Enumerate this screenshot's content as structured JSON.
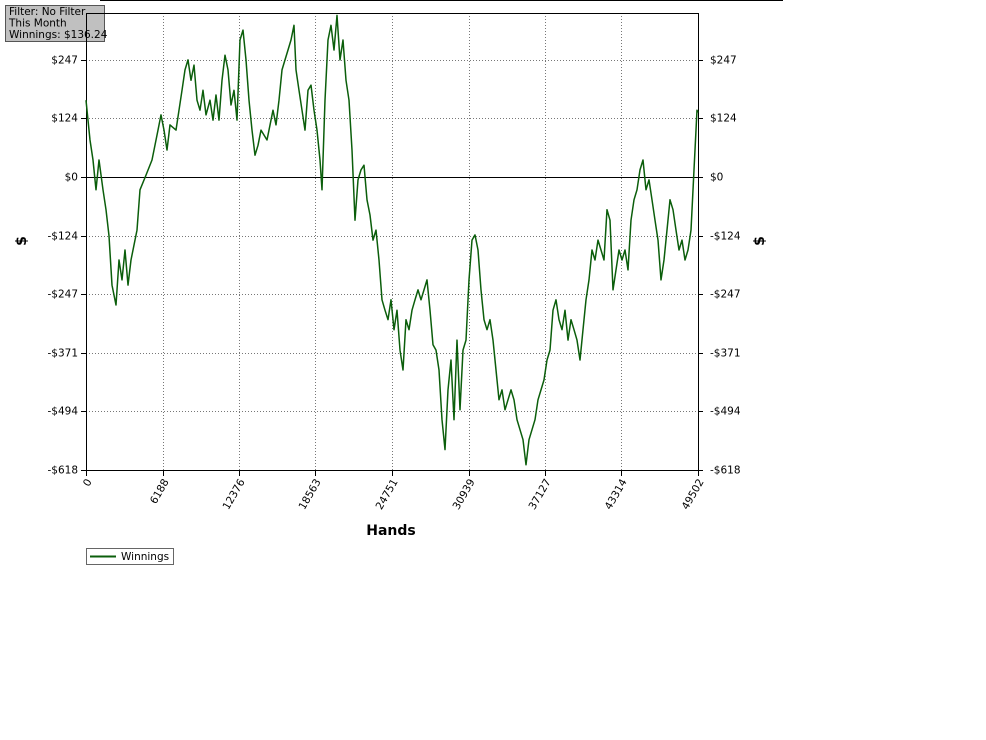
{
  "chart_data": {
    "type": "line",
    "annotations": [
      "Filter: No Filter",
      "This Month",
      "Winnings: $136.24"
    ],
    "x_label": "Hands",
    "y_label": "$",
    "y2_label": "$",
    "xlim": [
      0,
      49502
    ],
    "xticks": [
      0,
      6188,
      12376,
      18563,
      24751,
      30939,
      37127,
      43314,
      49502
    ],
    "ylim": [
      -618,
      346
    ],
    "yticks": [
      {
        "value": -618,
        "label": "-$618"
      },
      {
        "value": -494,
        "label": "-$494"
      },
      {
        "value": -371,
        "label": "-$371"
      },
      {
        "value": -247,
        "label": "-$247"
      },
      {
        "value": -124,
        "label": "-$124"
      },
      {
        "value": 0,
        "label": "$0"
      },
      {
        "value": 124,
        "label": "$124"
      },
      {
        "value": 247,
        "label": "$247"
      }
    ],
    "grid": true,
    "legend": "bottom-left",
    "x": [
      0,
      324,
      566,
      809,
      1052,
      1375,
      1618,
      1860,
      2103,
      2427,
      2669,
      2912,
      3155,
      3397,
      3640,
      4125,
      4368,
      4853,
      5339,
      5824,
      6067,
      6309,
      6552,
      6795,
      7280,
      7765,
      8008,
      8251,
      8493,
      8736,
      8979,
      9221,
      9464,
      9707,
      10030,
      10273,
      10516,
      10758,
      11001,
      11244,
      11486,
      11729,
      11972,
      12214,
      12457,
      12700,
      12942,
      13185,
      13428,
      13670,
      13913,
      14156,
      14641,
      15126,
      15369,
      15612,
      15854,
      16097,
      16340,
      16582,
      16825,
      16987,
      17230,
      17472,
      17715,
      17958,
      18200,
      18443,
      18686,
      18928,
      19090,
      19333,
      19575,
      19818,
      20061,
      20303,
      20546,
      20789,
      21031,
      21274,
      21517,
      21759,
      22002,
      22245,
      22487,
      22730,
      22973,
      23215,
      23458,
      23701,
      23943,
      24186,
      24429,
      24671,
      24914,
      25157,
      25399,
      25642,
      25885,
      26127,
      26370,
      26613,
      26855,
      27098,
      27341,
      27583,
      27826,
      28069,
      28311,
      28554,
      28797,
      29040,
      29282,
      29525,
      29768,
      30010,
      30253,
      30496,
      30738,
      30981,
      31224,
      31466,
      31709,
      31952,
      32194,
      32437,
      32680,
      32922,
      33165,
      33408,
      33650,
      33893,
      34136,
      34378,
      34621,
      34864,
      35106,
      35349,
      35592,
      35834,
      36077,
      36320,
      36562,
      36805,
      37048,
      37290,
      37533,
      37776,
      38018,
      38261,
      38504,
      38746,
      38989,
      39232,
      39474,
      39717,
      39960,
      40202,
      40445,
      40688,
      40930,
      41173,
      41416,
      41658,
      41901,
      42144,
      42386,
      42629,
      42872,
      43114,
      43357,
      43600,
      43842,
      44085,
      44328,
      44570,
      44813,
      45056,
      45298,
      45541,
      45784,
      46027,
      46269,
      46512,
      46755,
      46997,
      47240,
      47483,
      47725,
      47968,
      48211,
      48453,
      48696,
      48939,
      49181,
      49424,
      49502
    ],
    "series": [
      {
        "name": "Winnings",
        "color": "#0b5e0b",
        "values": [
          162,
          78,
          36,
          -27,
          36,
          -27,
          -69,
          -124,
          -228,
          -270,
          -175,
          -217,
          -154,
          -228,
          -175,
          -112,
          -27,
          4,
          36,
          99,
          131,
          99,
          57,
          110,
          99,
          183,
          226,
          247,
          204,
          236,
          162,
          141,
          183,
          131,
          162,
          120,
          173,
          120,
          204,
          257,
          226,
          152,
          183,
          120,
          289,
          310,
          247,
          162,
          99,
          46,
          67,
          99,
          78,
          141,
          110,
          162,
          226,
          247,
          268,
          289,
          320,
          226,
          183,
          141,
          99,
          183,
          194,
          141,
          99,
          36,
          -27,
          162,
          289,
          320,
          268,
          341,
          247,
          289,
          204,
          162,
          57,
          -91,
          -6,
          15,
          25,
          -48,
          -80,
          -133,
          -112,
          -175,
          -259,
          -281,
          -301,
          -259,
          -322,
          -281,
          -365,
          -407,
          -301,
          -322,
          -281,
          -259,
          -238,
          -259,
          -238,
          -217,
          -281,
          -354,
          -365,
          -407,
          -512,
          -575,
          -449,
          -386,
          -512,
          -344,
          -491,
          -365,
          -344,
          -217,
          -133,
          -122,
          -154,
          -238,
          -301,
          -322,
          -301,
          -344,
          -407,
          -470,
          -449,
          -491,
          -470,
          -449,
          -470,
          -512,
          -533,
          -554,
          -607,
          -554,
          -533,
          -512,
          -470,
          -449,
          -428,
          -386,
          -365,
          -281,
          -259,
          -301,
          -322,
          -281,
          -344,
          -301,
          -322,
          -344,
          -386,
          -322,
          -259,
          -217,
          -154,
          -175,
          -133,
          -154,
          -175,
          -69,
          -91,
          -238,
          -196,
          -154,
          -175,
          -154,
          -196,
          -91,
          -48,
          -27,
          15,
          36,
          -27,
          -6,
          -48,
          -91,
          -133,
          -217,
          -175,
          -112,
          -48,
          -69,
          -112,
          -154,
          -133,
          -175,
          -154,
          -112,
          15,
          141,
          136
        ]
      }
    ]
  }
}
